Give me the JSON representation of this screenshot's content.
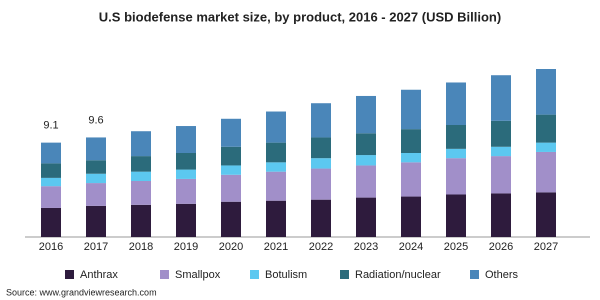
{
  "chart_data": {
    "type": "stacked_bar",
    "title": "U.S biodefense market size, by product, 2016 - 2027 (USD Billion)",
    "categories": [
      "2016",
      "2017",
      "2018",
      "2019",
      "2020",
      "2021",
      "2022",
      "2023",
      "2024",
      "2025",
      "2026",
      "2027"
    ],
    "series": [
      {
        "name": "Anthrax",
        "color": "#2e1b3d",
        "values": [
          2.8,
          3.0,
          3.1,
          3.2,
          3.4,
          3.5,
          3.6,
          3.8,
          3.9,
          4.1,
          4.2,
          4.3
        ]
      },
      {
        "name": "Smallpox",
        "color": "#a18fc9",
        "values": [
          2.1,
          2.2,
          2.3,
          2.4,
          2.6,
          2.8,
          3.0,
          3.1,
          3.3,
          3.5,
          3.6,
          3.9
        ]
      },
      {
        "name": "Botulism",
        "color": "#5cc8f0",
        "values": [
          0.8,
          0.9,
          0.9,
          0.9,
          0.9,
          0.9,
          1.0,
          1.0,
          0.9,
          0.9,
          0.9,
          0.9
        ]
      },
      {
        "name": "Radiation/nuclear",
        "color": "#2b6b7b",
        "values": [
          1.4,
          1.3,
          1.5,
          1.6,
          1.8,
          1.9,
          2.0,
          2.1,
          2.3,
          2.3,
          2.5,
          2.7
        ]
      },
      {
        "name": "Others",
        "color": "#4a86b9",
        "values": [
          2.0,
          2.2,
          2.4,
          2.6,
          2.7,
          3.0,
          3.3,
          3.6,
          3.8,
          4.1,
          4.4,
          4.4
        ]
      }
    ],
    "total_labels": [
      9.1,
      9.6,
      null,
      null,
      null,
      null,
      null,
      null,
      null,
      null,
      null,
      null
    ],
    "source": "Source: www.grandviewresearch.com"
  }
}
